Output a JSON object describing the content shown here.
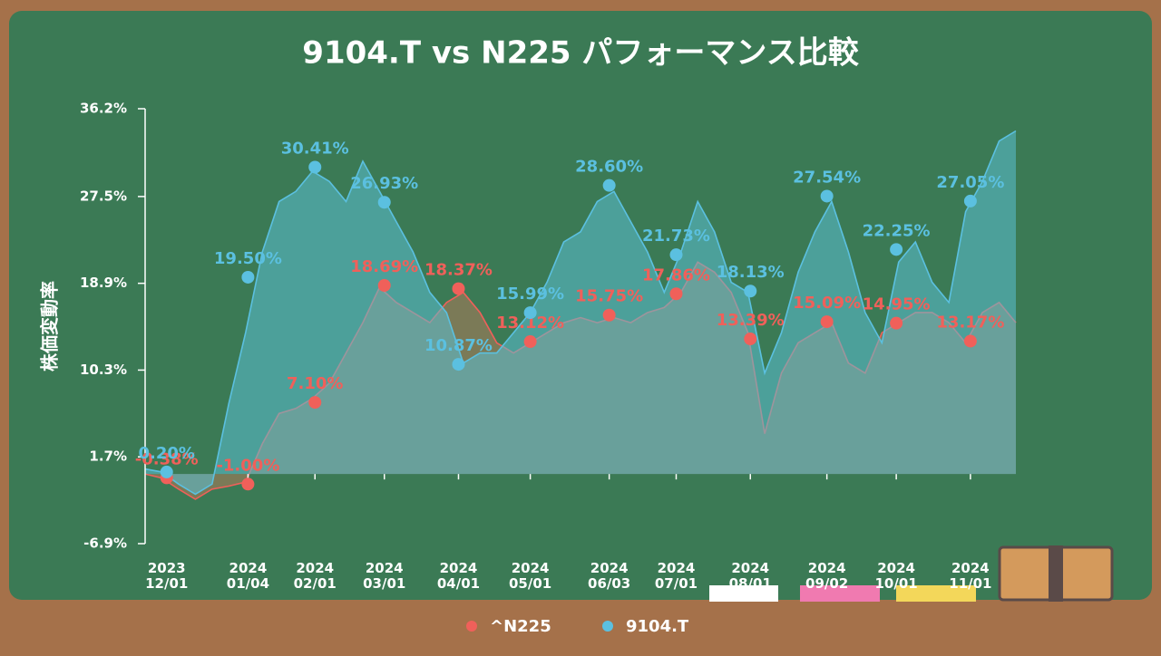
{
  "chart_data": {
    "type": "area",
    "title": "9104.T vs N225 パフォーマンス比較",
    "y_label": "株価変動率",
    "x": [
      "2023-11-22",
      "2023-11-29",
      "2023-12-06",
      "2023-12-13",
      "2023-12-20",
      "2023-12-27",
      "2024-01-03",
      "2024-01-10",
      "2024-01-17",
      "2024-01-24",
      "2024-01-31",
      "2024-02-07",
      "2024-02-14",
      "2024-02-21",
      "2024-02-28",
      "2024-03-06",
      "2024-03-13",
      "2024-03-20",
      "2024-03-27",
      "2024-04-03",
      "2024-04-10",
      "2024-04-17",
      "2024-04-24",
      "2024-05-01",
      "2024-05-08",
      "2024-05-15",
      "2024-05-22",
      "2024-05-29",
      "2024-06-05",
      "2024-06-12",
      "2024-06-19",
      "2024-06-26",
      "2024-07-03",
      "2024-07-10",
      "2024-07-17",
      "2024-07-24",
      "2024-07-31",
      "2024-08-07",
      "2024-08-14",
      "2024-08-21",
      "2024-08-28",
      "2024-09-04",
      "2024-09-11",
      "2024-09-18",
      "2024-09-25",
      "2024-10-02",
      "2024-10-09",
      "2024-10-16",
      "2024-10-23",
      "2024-10-30",
      "2024-11-06",
      "2024-11-13",
      "2024-11-20"
    ],
    "xlim": [
      "2023-11-22",
      "2024-11-20"
    ],
    "xticks": [
      {
        "value": "2023-12-01",
        "label": "2023\n12/01"
      },
      {
        "value": "2024-01-04",
        "label": "2024\n01/04"
      },
      {
        "value": "2024-02-01",
        "label": "2024\n02/01"
      },
      {
        "value": "2024-03-01",
        "label": "2024\n03/01"
      },
      {
        "value": "2024-04-01",
        "label": "2024\n04/01"
      },
      {
        "value": "2024-05-01",
        "label": "2024\n05/01"
      },
      {
        "value": "2024-06-03",
        "label": "2024\n06/03"
      },
      {
        "value": "2024-07-01",
        "label": "2024\n07/01"
      },
      {
        "value": "2024-08-01",
        "label": "2024\n08/01"
      },
      {
        "value": "2024-09-02",
        "label": "2024\n09/02"
      },
      {
        "value": "2024-10-01",
        "label": "2024\n10/01"
      },
      {
        "value": "2024-11-01",
        "label": "2024\n11/01"
      }
    ],
    "ylim": [
      -6.9,
      36.2
    ],
    "yticks": [
      {
        "value": -6.9,
        "label": "-6.9%"
      },
      {
        "value": 1.7,
        "label": "1.7%"
      },
      {
        "value": 10.3,
        "label": "10.3%"
      },
      {
        "value": 18.9,
        "label": "18.9%"
      },
      {
        "value": 27.5,
        "label": "27.5%"
      },
      {
        "value": 36.2,
        "label": "36.2%"
      }
    ],
    "series": [
      {
        "name": "^N225",
        "color": "#f0605a",
        "fill": "#b07a5a",
        "values": [
          0,
          -0.4,
          -1.5,
          -2.5,
          -1.5,
          -1.2,
          -0.8,
          3,
          6,
          6.5,
          7.5,
          9,
          12,
          15,
          18.5,
          17,
          16,
          15,
          17,
          18,
          16,
          13,
          12,
          13,
          14,
          15,
          15.5,
          15,
          15.5,
          15,
          16,
          16.5,
          18,
          21,
          20,
          18,
          14,
          4,
          10,
          13,
          14,
          15,
          11,
          10,
          14,
          15,
          16,
          16,
          15,
          13,
          16,
          17,
          15
        ],
        "markers": {
          "values": [
            -0.38,
            -1.0,
            7.1,
            18.69,
            18.37,
            13.12,
            15.75,
            17.86,
            13.39,
            15.09,
            14.95,
            13.17
          ],
          "value_labels": [
            "-0.38%",
            "-1.00%",
            "7.10%",
            "18.69%",
            "18.37%",
            "13.12%",
            "15.75%",
            "17.86%",
            "13.39%",
            "15.09%",
            "14.95%",
            "13.17%"
          ]
        }
      },
      {
        "name": "9104.T",
        "color": "#5bc0e0",
        "fill": "#5bbfd4",
        "values": [
          0.5,
          0.2,
          -1,
          -2,
          -1,
          7,
          14,
          22,
          27,
          28,
          30,
          29,
          27,
          31,
          28,
          25,
          22,
          18,
          16,
          11,
          12,
          12,
          14,
          16,
          19,
          23,
          24,
          27,
          28,
          25,
          22,
          18,
          22,
          27,
          24,
          19,
          18,
          10,
          14,
          20,
          24,
          27,
          22,
          16,
          13,
          21,
          23,
          19,
          17,
          26,
          29,
          33,
          34
        ],
        "markers": {
          "values": [
            0.2,
            19.5,
            30.41,
            26.93,
            10.87,
            15.99,
            28.6,
            21.73,
            18.13,
            27.54,
            22.25,
            27.05
          ],
          "value_labels": [
            "0.20%",
            "19.50%",
            "30.41%",
            "26.93%",
            "10.87%",
            "15.99%",
            "28.60%",
            "21.73%",
            "18.13%",
            "27.54%",
            "22.25%",
            "27.05%"
          ]
        }
      }
    ],
    "legend": "bottom"
  }
}
